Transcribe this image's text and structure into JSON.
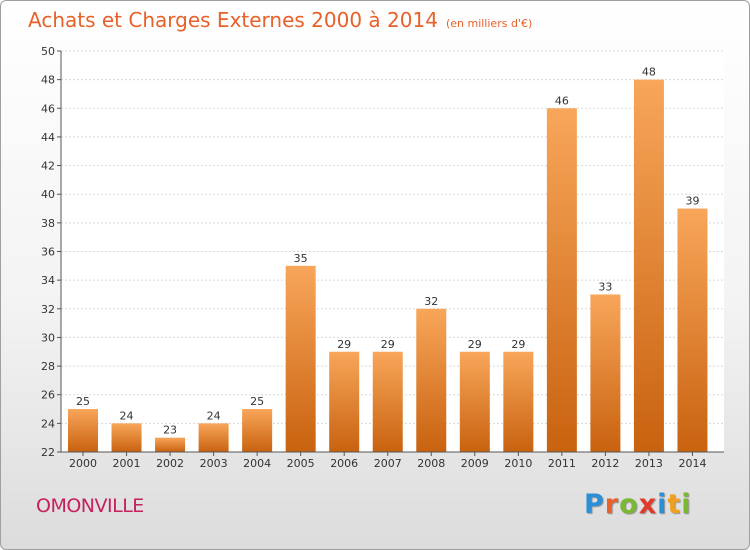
{
  "title": "Achats et Charges Externes 2000 à 2014",
  "subtitle": "(en milliers d'€)",
  "commune": "OMONVILLE",
  "logo": {
    "text": "Proxiti",
    "letters": [
      {
        "char": "P",
        "color": "#2b8fd8"
      },
      {
        "char": "r",
        "color": "#e8602a"
      },
      {
        "char": "o",
        "color": "#7bb832"
      },
      {
        "char": "x",
        "color": "#e03a2c"
      },
      {
        "char": "i",
        "color": "#2b8fd8"
      },
      {
        "char": "t",
        "color": "#f0a020"
      },
      {
        "char": "i",
        "color": "#7bb832"
      }
    ]
  },
  "colors": {
    "title": "#e8602a",
    "commune": "#c6205e",
    "bar_light": "#f8a65a",
    "bar_dark": "#c8620f"
  },
  "chart_data": {
    "type": "bar",
    "title": "Achats et Charges Externes 2000 à 2014",
    "subtitle": "(en milliers d'€)",
    "categories": [
      "2000",
      "2001",
      "2002",
      "2003",
      "2004",
      "2005",
      "2006",
      "2007",
      "2008",
      "2009",
      "2010",
      "2011",
      "2012",
      "2013",
      "2014"
    ],
    "values": [
      25,
      24,
      23,
      24,
      25,
      35,
      29,
      29,
      32,
      29,
      29,
      46,
      33,
      48,
      39
    ],
    "ylim": [
      22,
      50
    ],
    "yticks": [
      22,
      24,
      26,
      28,
      30,
      32,
      34,
      36,
      38,
      40,
      42,
      44,
      46,
      48,
      50
    ],
    "grid": true,
    "xlabel": "",
    "ylabel": ""
  }
}
